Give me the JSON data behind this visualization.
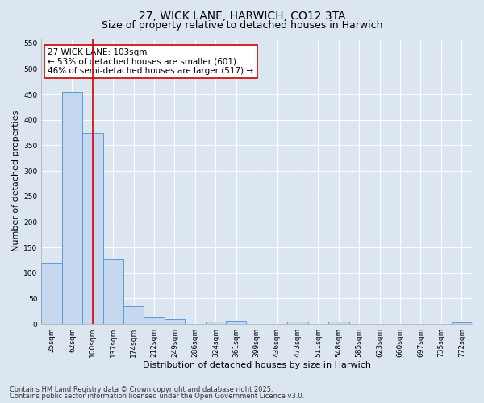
{
  "title_line1": "27, WICK LANE, HARWICH, CO12 3TA",
  "title_line2": "Size of property relative to detached houses in Harwich",
  "xlabel": "Distribution of detached houses by size in Harwich",
  "ylabel": "Number of detached properties",
  "categories": [
    "25sqm",
    "62sqm",
    "100sqm",
    "137sqm",
    "174sqm",
    "212sqm",
    "249sqm",
    "286sqm",
    "324sqm",
    "361sqm",
    "399sqm",
    "436sqm",
    "473sqm",
    "511sqm",
    "548sqm",
    "585sqm",
    "623sqm",
    "660sqm",
    "697sqm",
    "735sqm",
    "772sqm"
  ],
  "values": [
    120,
    455,
    375,
    128,
    35,
    15,
    9,
    0,
    5,
    6,
    0,
    0,
    5,
    0,
    5,
    0,
    0,
    0,
    0,
    0,
    3
  ],
  "bar_color": "#c5d8ef",
  "bar_edge_color": "#5b9bd5",
  "vline_x": 2,
  "vline_color": "#cc0000",
  "annotation_text": "27 WICK LANE: 103sqm\n← 53% of detached houses are smaller (601)\n46% of semi-detached houses are larger (517) →",
  "annotation_box_color": "#ffffff",
  "annotation_box_edge": "#cc0000",
  "ylim": [
    0,
    560
  ],
  "yticks": [
    0,
    50,
    100,
    150,
    200,
    250,
    300,
    350,
    400,
    450,
    500,
    550
  ],
  "bg_color": "#dce6f1",
  "plot_bg_color": "#dce6f1",
  "grid_color": "#ffffff",
  "footer_line1": "Contains HM Land Registry data © Crown copyright and database right 2025.",
  "footer_line2": "Contains public sector information licensed under the Open Government Licence v3.0.",
  "title_fontsize": 10,
  "subtitle_fontsize": 9,
  "tick_fontsize": 6.5,
  "label_fontsize": 8,
  "annotation_fontsize": 7.5,
  "footer_fontsize": 6
}
